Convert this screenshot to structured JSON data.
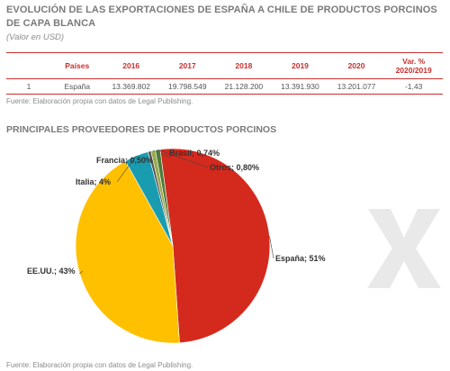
{
  "header": {
    "title": "EVOLUCIÓN DE LAS EXPORTACIONES DE ESPAÑA A CHILE DE PRODUCTOS PORCINOS DE CAPA BLANCA",
    "subtitle": "(Valor en USD)"
  },
  "table": {
    "headers": [
      "",
      "Países",
      "2016",
      "2017",
      "2018",
      "2019",
      "2020",
      "Var. % 2020/2019"
    ],
    "rows": [
      [
        "1",
        "España",
        "13.369.802",
        "19.798.549",
        "21.128.200",
        "13.391.930",
        "13.201.077",
        "-1,43"
      ]
    ]
  },
  "source1": "Fuente: Elaboración propia con datos de Legal Publishing.",
  "section2_title": "PRINCIPALES PROVEEDORES DE PRODUCTOS PORCINOS",
  "source2": "Fuente: Elaboración propia con datos de Legal Publishing.",
  "chart_data": {
    "type": "pie",
    "slices": [
      {
        "label": "España; 51%",
        "value": 51,
        "color": "#d42a1e"
      },
      {
        "label": "EE.UU.; 43%",
        "value": 43,
        "color": "#ffc000"
      },
      {
        "label": "Italia; 4%",
        "value": 4,
        "color": "#1a9cb0"
      },
      {
        "label": "Francia; 0,50%",
        "value": 0.5,
        "color": "#555555"
      },
      {
        "label": "Brasil; 0,74%",
        "value": 0.74,
        "color": "#9aa94a"
      },
      {
        "label": "Otros; 0,80%",
        "value": 0.8,
        "color": "#4f7a3a"
      }
    ]
  },
  "watermark": {
    "color": "#e9e9e9"
  }
}
